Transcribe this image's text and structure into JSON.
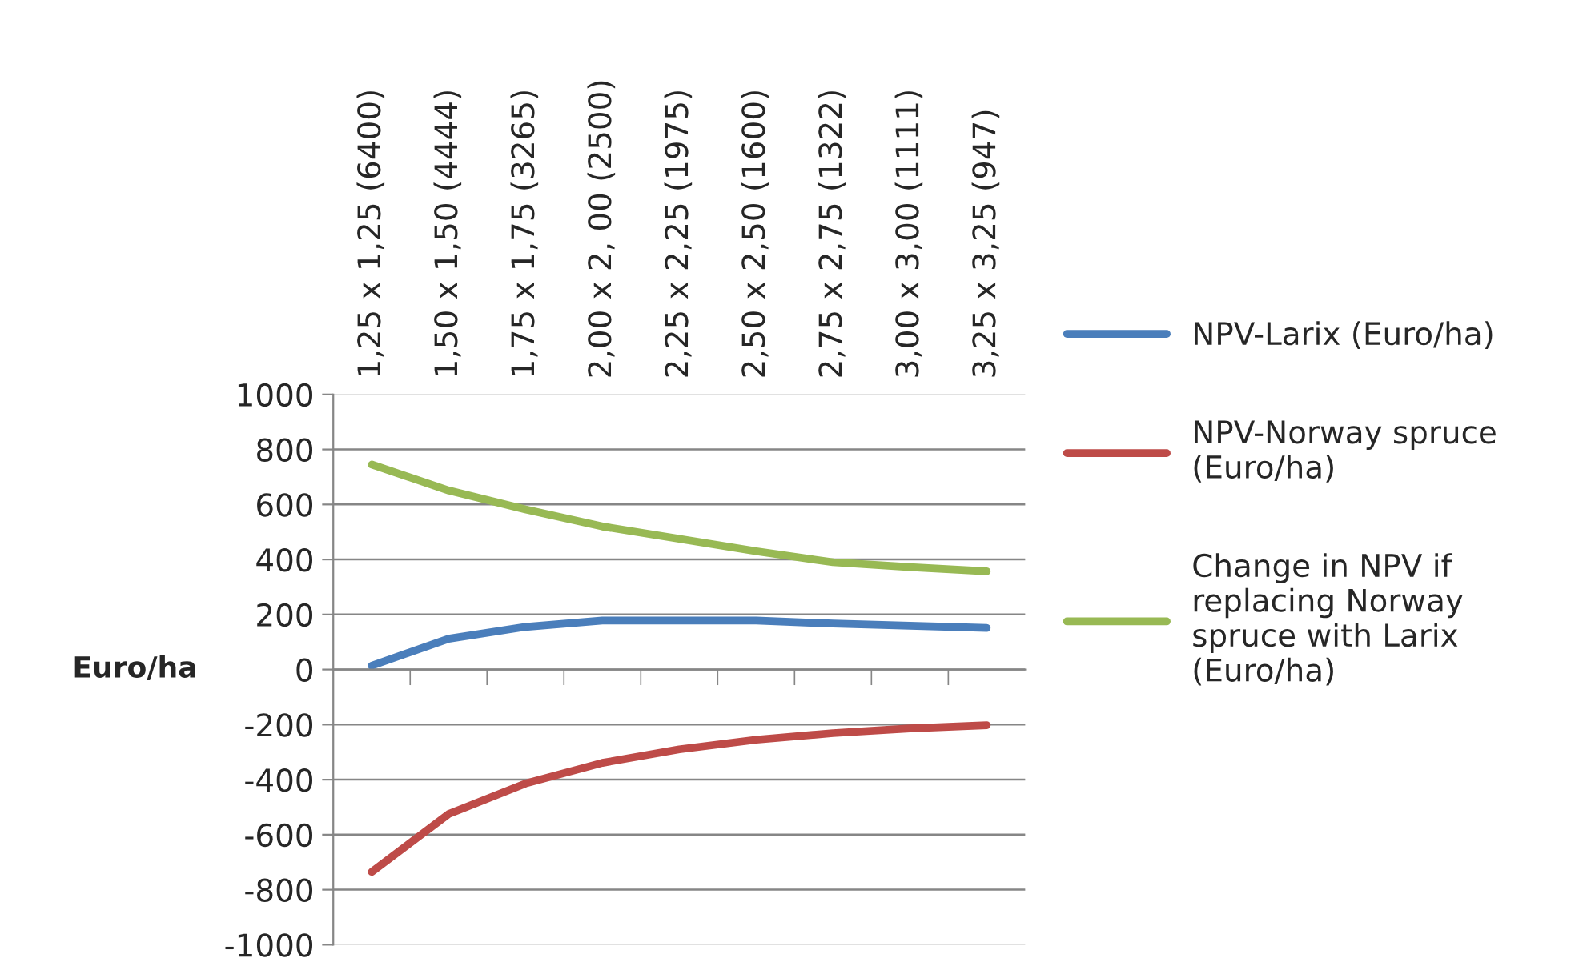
{
  "chart_data": {
    "type": "line",
    "ylabel": "Euro/ha",
    "categories": [
      "1,25 x 1,25 (6400)",
      "1,50 x 1,50 (4444)",
      "1,75 x 1,75 (3265)",
      "2,00 x 2, 00 (2500)",
      "2,25 x 2,25 (1975)",
      "2,50 x 2,50 (1600)",
      "2,75 x 2,75 (1322)",
      "3,00 x 3,00 (1111)",
      "3,25 x 3,25 (947)"
    ],
    "series": [
      {
        "name": "NPV-Larix (Euro/ha)",
        "color": "#4a7ebb",
        "values": [
          14,
          112,
          155,
          178,
          178,
          178,
          167,
          159,
          151
        ]
      },
      {
        "name": "NPV-Norway spruce\n(Euro/ha)",
        "color": "#be4b48",
        "values": [
          -735,
          -525,
          -414,
          -339,
          -290,
          -255,
          -231,
          -214,
          -202
        ]
      },
      {
        "name": "Change in NPV if\nreplacing Norway\nspruce with Larix\n(Euro/ha)",
        "color": "#98b954",
        "values": [
          745,
          651,
          582,
          520,
          475,
          430,
          390,
          372,
          357
        ]
      }
    ],
    "ylim": [
      -1000,
      1000
    ],
    "yticks": [
      -1000,
      -800,
      -600,
      -400,
      -200,
      0,
      200,
      400,
      600,
      800,
      1000
    ],
    "grid": "y",
    "legend": "right",
    "marker": "none",
    "line_style": "solid"
  }
}
